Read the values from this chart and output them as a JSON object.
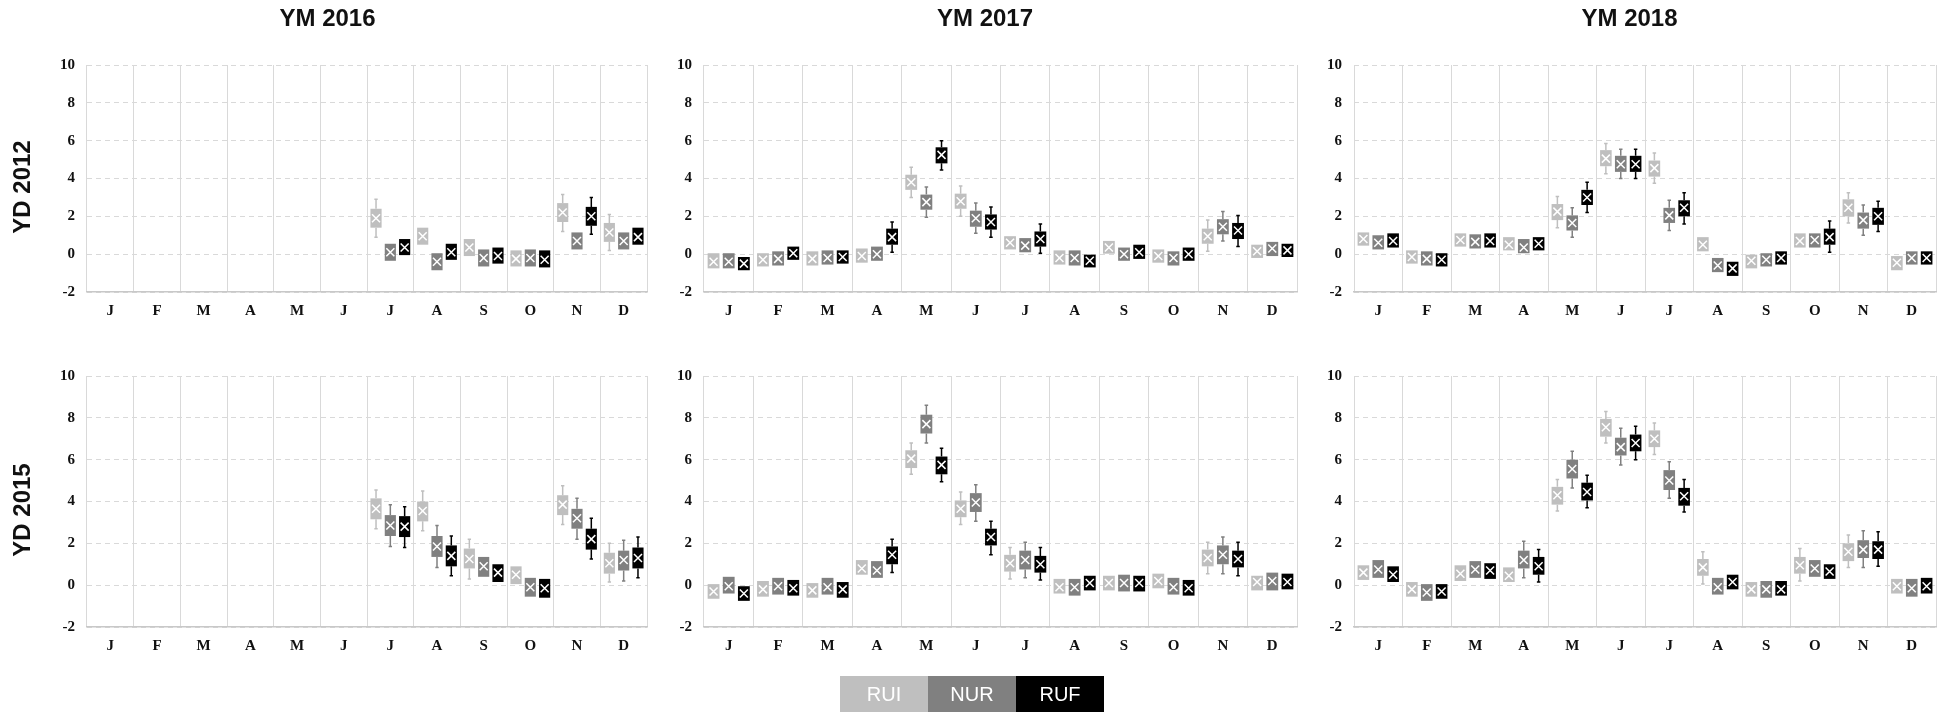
{
  "chart_data": [
    {
      "type": "box",
      "title": "YM 2016",
      "ylabel": "YD 2012",
      "categories": [
        "J",
        "F",
        "M",
        "A",
        "M",
        "J",
        "J",
        "A",
        "S",
        "O",
        "N",
        "D"
      ],
      "ylim": [
        -2,
        10
      ],
      "yticks": [
        -2,
        0,
        2,
        4,
        6,
        8,
        10
      ],
      "grid": true,
      "series": [
        {
          "color": "#bfbfbf",
          "boxes": [
            null,
            null,
            null,
            null,
            null,
            null,
            {
              "low": 0.9,
              "q1": 1.4,
              "median": 1.9,
              "q3": 2.4,
              "high": 2.9
            },
            {
              "low": 0.5,
              "q1": 0.5,
              "median": 0.95,
              "q3": 1.4,
              "high": 1.4
            },
            {
              "low": -0.1,
              "q1": -0.1,
              "median": 0.35,
              "q3": 0.8,
              "high": 0.8
            },
            {
              "low": -0.65,
              "q1": -0.65,
              "median": -0.25,
              "q3": 0.2,
              "high": 0.2
            },
            {
              "low": 1.2,
              "q1": 1.7,
              "median": 2.2,
              "q3": 2.7,
              "high": 3.15
            },
            {
              "low": 0.2,
              "q1": 0.65,
              "median": 1.15,
              "q3": 1.65,
              "high": 2.1
            }
          ]
        },
        {
          "color": "#808080",
          "boxes": [
            null,
            null,
            null,
            null,
            null,
            null,
            {
              "low": -0.35,
              "q1": -0.35,
              "median": 0.1,
              "q3": 0.55,
              "high": 0.55
            },
            {
              "low": -0.85,
              "q1": -0.85,
              "median": -0.4,
              "q3": 0.05,
              "high": 0.05
            },
            {
              "low": -0.65,
              "q1": -0.65,
              "median": -0.2,
              "q3": 0.25,
              "high": 0.25
            },
            {
              "low": -0.65,
              "q1": -0.65,
              "median": -0.2,
              "q3": 0.25,
              "high": 0.25
            },
            {
              "low": 0.25,
              "q1": 0.25,
              "median": 0.7,
              "q3": 1.15,
              "high": 1.15
            },
            {
              "low": 0.25,
              "q1": 0.25,
              "median": 0.7,
              "q3": 1.15,
              "high": 1.15
            }
          ]
        },
        {
          "color": "#000000",
          "boxes": [
            null,
            null,
            null,
            null,
            null,
            null,
            {
              "low": -0.05,
              "q1": -0.05,
              "median": 0.35,
              "q3": 0.8,
              "high": 0.8
            },
            {
              "low": -0.3,
              "q1": -0.3,
              "median": 0.1,
              "q3": 0.55,
              "high": 0.55
            },
            {
              "low": -0.5,
              "q1": -0.5,
              "median": -0.1,
              "q3": 0.35,
              "high": 0.35
            },
            {
              "low": -0.7,
              "q1": -0.7,
              "median": -0.3,
              "q3": 0.2,
              "high": 0.2
            },
            {
              "low": 1.05,
              "q1": 1.5,
              "median": 2.0,
              "q3": 2.5,
              "high": 3.0
            },
            {
              "low": 0.5,
              "q1": 0.5,
              "median": 0.9,
              "q3": 1.4,
              "high": 1.4
            }
          ]
        }
      ]
    },
    {
      "type": "box",
      "title": "YM 2017",
      "categories": [
        "J",
        "F",
        "M",
        "A",
        "M",
        "J",
        "J",
        "A",
        "S",
        "O",
        "N",
        "D"
      ],
      "ylim": [
        -2,
        10
      ],
      "yticks": [
        -2,
        0,
        2,
        4,
        6,
        8,
        10
      ],
      "grid": true,
      "series": [
        {
          "color": "#bfbfbf",
          "boxes": [
            {
              "low": -0.75,
              "q1": -0.75,
              "median": -0.4,
              "q3": 0.05,
              "high": 0.05
            },
            {
              "low": -0.65,
              "q1": -0.65,
              "median": -0.3,
              "q3": 0.05,
              "high": 0.05
            },
            {
              "low": -0.6,
              "q1": -0.6,
              "median": -0.25,
              "q3": 0.15,
              "high": 0.15
            },
            {
              "low": -0.45,
              "q1": -0.45,
              "median": -0.1,
              "q3": 0.3,
              "high": 0.3
            },
            {
              "low": 3.0,
              "q1": 3.4,
              "median": 3.8,
              "q3": 4.2,
              "high": 4.6
            },
            {
              "low": 2.0,
              "q1": 2.4,
              "median": 2.8,
              "q3": 3.2,
              "high": 3.6
            },
            {
              "low": 0.25,
              "q1": 0.25,
              "median": 0.6,
              "q3": 0.95,
              "high": 0.95
            },
            {
              "low": -0.55,
              "q1": -0.55,
              "median": -0.2,
              "q3": 0.2,
              "high": 0.2
            },
            {
              "low": 0,
              "q1": 0,
              "median": 0.35,
              "q3": 0.7,
              "high": 0.7
            },
            {
              "low": -0.45,
              "q1": -0.45,
              "median": -0.1,
              "q3": 0.25,
              "high": 0.25
            },
            {
              "low": 0.15,
              "q1": 0.55,
              "median": 0.95,
              "q3": 1.35,
              "high": 1.8
            },
            {
              "low": -0.2,
              "q1": -0.2,
              "median": 0.15,
              "q3": 0.5,
              "high": 0.5
            }
          ]
        },
        {
          "color": "#808080",
          "boxes": [
            {
              "low": -0.75,
              "q1": -0.75,
              "median": -0.4,
              "q3": 0.05,
              "high": 0.05
            },
            {
              "low": -0.6,
              "q1": -0.6,
              "median": -0.25,
              "q3": 0.15,
              "high": 0.15
            },
            {
              "low": -0.55,
              "q1": -0.55,
              "median": -0.2,
              "q3": 0.2,
              "high": 0.2
            },
            {
              "low": -0.35,
              "q1": -0.35,
              "median": 0,
              "q3": 0.4,
              "high": 0.4
            },
            {
              "low": 1.95,
              "q1": 2.35,
              "median": 2.75,
              "q3": 3.15,
              "high": 3.55
            },
            {
              "low": 1.1,
              "q1": 1.45,
              "median": 1.9,
              "q3": 2.3,
              "high": 2.7
            },
            {
              "low": 0.1,
              "q1": 0.1,
              "median": 0.45,
              "q3": 0.85,
              "high": 0.85
            },
            {
              "low": -0.6,
              "q1": -0.6,
              "median": -0.2,
              "q3": 0.2,
              "high": 0.2
            },
            {
              "low": -0.35,
              "q1": -0.35,
              "median": 0,
              "q3": 0.35,
              "high": 0.35
            },
            {
              "low": -0.6,
              "q1": -0.6,
              "median": -0.2,
              "q3": 0.15,
              "high": 0.15
            },
            {
              "low": 0.7,
              "q1": 1.05,
              "median": 1.45,
              "q3": 1.85,
              "high": 2.25
            },
            {
              "low": -0.1,
              "q1": -0.1,
              "median": 0.3,
              "q3": 0.65,
              "high": 0.65
            }
          ]
        },
        {
          "color": "#000000",
          "boxes": [
            {
              "low": -0.85,
              "q1": -0.85,
              "median": -0.5,
              "q3": -0.15,
              "high": -0.15
            },
            {
              "low": -0.3,
              "q1": -0.3,
              "median": 0.05,
              "q3": 0.4,
              "high": 0.4
            },
            {
              "low": -0.5,
              "q1": -0.5,
              "median": -0.15,
              "q3": 0.2,
              "high": 0.2
            },
            {
              "low": 0.1,
              "q1": 0.5,
              "median": 0.9,
              "q3": 1.35,
              "high": 1.7
            },
            {
              "low": 4.45,
              "q1": 4.8,
              "median": 5.25,
              "q3": 5.65,
              "high": 6.0
            },
            {
              "low": 0.9,
              "q1": 1.3,
              "median": 1.7,
              "q3": 2.1,
              "high": 2.5
            },
            {
              "low": 0.05,
              "q1": 0.4,
              "median": 0.8,
              "q3": 1.2,
              "high": 1.6
            },
            {
              "low": -0.7,
              "q1": -0.7,
              "median": -0.35,
              "q3": 0,
              "high": 0
            },
            {
              "low": -0.25,
              "q1": -0.25,
              "median": 0.1,
              "q3": 0.5,
              "high": 0.5
            },
            {
              "low": -0.35,
              "q1": -0.35,
              "median": 0,
              "q3": 0.35,
              "high": 0.35
            },
            {
              "low": 0.4,
              "q1": 0.8,
              "median": 1.25,
              "q3": 1.65,
              "high": 2.05
            },
            {
              "low": -0.15,
              "q1": -0.15,
              "median": 0.2,
              "q3": 0.55,
              "high": 0.55
            }
          ]
        }
      ]
    },
    {
      "type": "box",
      "title": "YM 2018",
      "categories": [
        "J",
        "F",
        "M",
        "A",
        "M",
        "J",
        "J",
        "A",
        "S",
        "O",
        "N",
        "D"
      ],
      "ylim": [
        -2,
        10
      ],
      "yticks": [
        -2,
        0,
        2,
        4,
        6,
        8,
        10
      ],
      "grid": true,
      "series": [
        {
          "color": "#bfbfbf",
          "boxes": [
            {
              "low": 0.45,
              "q1": 0.45,
              "median": 0.8,
              "q3": 1.15,
              "high": 1.15
            },
            {
              "low": -0.5,
              "q1": -0.5,
              "median": -0.15,
              "q3": 0.2,
              "high": 0.2
            },
            {
              "low": 0.4,
              "q1": 0.4,
              "median": 0.75,
              "q3": 1.1,
              "high": 1.1
            },
            {
              "low": 0.2,
              "q1": 0.2,
              "median": 0.5,
              "q3": 0.9,
              "high": 0.9
            },
            {
              "low": 1.4,
              "q1": 1.8,
              "median": 2.25,
              "q3": 2.65,
              "high": 3.05
            },
            {
              "low": 4.25,
              "q1": 4.65,
              "median": 5.05,
              "q3": 5.5,
              "high": 5.85
            },
            {
              "low": 3.75,
              "q1": 4.1,
              "median": 4.55,
              "q3": 4.95,
              "high": 5.35
            },
            {
              "low": 0.15,
              "q1": 0.15,
              "median": 0.5,
              "q3": 0.9,
              "high": 0.9
            },
            {
              "low": -0.75,
              "q1": -0.75,
              "median": -0.35,
              "q3": 0,
              "high": 0
            },
            {
              "low": 0.35,
              "q1": 0.35,
              "median": 0.7,
              "q3": 1.1,
              "high": 1.1
            },
            {
              "low": 1.65,
              "q1": 2.0,
              "median": 2.45,
              "q3": 2.9,
              "high": 3.25
            },
            {
              "low": -0.85,
              "q1": -0.85,
              "median": -0.45,
              "q3": -0.1,
              "high": -0.1
            }
          ]
        },
        {
          "color": "#808080",
          "boxes": [
            {
              "low": 0.25,
              "q1": 0.25,
              "median": 0.6,
              "q3": 1.0,
              "high": 1.0
            },
            {
              "low": -0.6,
              "q1": -0.6,
              "median": -0.25,
              "q3": 0.15,
              "high": 0.15
            },
            {
              "low": 0.3,
              "q1": 0.3,
              "median": 0.65,
              "q3": 1.05,
              "high": 1.05
            },
            {
              "low": 0.05,
              "q1": 0.05,
              "median": 0.35,
              "q3": 0.8,
              "high": 0.8
            },
            {
              "low": 0.9,
              "q1": 1.25,
              "median": 1.65,
              "q3": 2.05,
              "high": 2.45
            },
            {
              "low": 4.0,
              "q1": 4.35,
              "median": 4.75,
              "q3": 5.2,
              "high": 5.55
            },
            {
              "low": 1.25,
              "q1": 1.65,
              "median": 2.05,
              "q3": 2.45,
              "high": 2.85
            },
            {
              "low": -0.95,
              "q1": -0.95,
              "median": -0.6,
              "q3": -0.2,
              "high": -0.2
            },
            {
              "low": -0.65,
              "q1": -0.65,
              "median": -0.3,
              "q3": 0.05,
              "high": 0.05
            },
            {
              "low": 0.35,
              "q1": 0.35,
              "median": 0.75,
              "q3": 1.1,
              "high": 1.1
            },
            {
              "low": 1.0,
              "q1": 1.35,
              "median": 1.8,
              "q3": 2.2,
              "high": 2.6
            },
            {
              "low": -0.55,
              "q1": -0.55,
              "median": -0.2,
              "q3": 0.15,
              "high": 0.15
            }
          ]
        },
        {
          "color": "#000000",
          "boxes": [
            {
              "low": 0.35,
              "q1": 0.35,
              "median": 0.7,
              "q3": 1.1,
              "high": 1.1
            },
            {
              "low": -0.65,
              "q1": -0.65,
              "median": -0.3,
              "q3": 0.05,
              "high": 0.05
            },
            {
              "low": 0.35,
              "q1": 0.35,
              "median": 0.7,
              "q3": 1.1,
              "high": 1.1
            },
            {
              "low": 0.2,
              "q1": 0.2,
              "median": 0.55,
              "q3": 0.9,
              "high": 0.9
            },
            {
              "low": 2.2,
              "q1": 2.6,
              "median": 3.0,
              "q3": 3.4,
              "high": 3.8
            },
            {
              "low": 4.0,
              "q1": 4.35,
              "median": 4.75,
              "q3": 5.2,
              "high": 5.55
            },
            {
              "low": 1.6,
              "q1": 2.0,
              "median": 2.45,
              "q3": 2.85,
              "high": 3.25
            },
            {
              "low": -1.15,
              "q1": -1.15,
              "median": -0.75,
              "q3": -0.4,
              "high": -0.4
            },
            {
              "low": -0.55,
              "q1": -0.55,
              "median": -0.2,
              "q3": 0.15,
              "high": 0.15
            },
            {
              "low": 0.1,
              "q1": 0.5,
              "median": 0.9,
              "q3": 1.35,
              "high": 1.75
            },
            {
              "low": 1.2,
              "q1": 1.55,
              "median": 2.0,
              "q3": 2.45,
              "high": 2.8
            },
            {
              "low": -0.55,
              "q1": -0.55,
              "median": -0.2,
              "q3": 0.15,
              "high": 0.15
            }
          ]
        }
      ]
    },
    {
      "type": "box",
      "ylabel": "YD 2015",
      "categories": [
        "J",
        "F",
        "M",
        "A",
        "M",
        "J",
        "J",
        "A",
        "S",
        "O",
        "N",
        "D"
      ],
      "ylim": [
        -2,
        10
      ],
      "yticks": [
        -2,
        0,
        2,
        4,
        6,
        8,
        10
      ],
      "grid": true,
      "series": [
        {
          "color": "#bfbfbf",
          "boxes": [
            null,
            null,
            null,
            null,
            null,
            null,
            {
              "low": 2.7,
              "q1": 3.15,
              "median": 3.65,
              "q3": 4.15,
              "high": 4.55
            },
            {
              "low": 2.6,
              "q1": 3.05,
              "median": 3.55,
              "q3": 4.0,
              "high": 4.5
            },
            {
              "low": 0.3,
              "q1": 0.8,
              "median": 1.25,
              "q3": 1.75,
              "high": 2.2
            },
            {
              "low": 0.05,
              "q1": 0.05,
              "median": 0.5,
              "q3": 0.9,
              "high": 0.9
            },
            {
              "low": 2.9,
              "q1": 3.35,
              "median": 3.85,
              "q3": 4.3,
              "high": 4.75
            },
            {
              "low": 0.15,
              "q1": 0.55,
              "median": 1.05,
              "q3": 1.55,
              "high": 2.0
            }
          ]
        },
        {
          "color": "#808080",
          "boxes": [
            null,
            null,
            null,
            null,
            null,
            null,
            {
              "low": 1.85,
              "q1": 2.35,
              "median": 2.85,
              "q3": 3.35,
              "high": 3.85
            },
            {
              "low": 0.85,
              "q1": 1.35,
              "median": 1.85,
              "q3": 2.35,
              "high": 2.85
            },
            {
              "low": 0.4,
              "q1": 0.4,
              "median": 0.9,
              "q3": 1.35,
              "high": 1.35
            },
            {
              "low": -0.55,
              "q1": -0.55,
              "median": -0.1,
              "q3": 0.35,
              "high": 0.35
            },
            {
              "low": 2.2,
              "q1": 2.7,
              "median": 3.2,
              "q3": 3.65,
              "high": 4.15
            },
            {
              "low": 0.2,
              "q1": 0.7,
              "median": 1.2,
              "q3": 1.65,
              "high": 2.15
            }
          ]
        },
        {
          "color": "#000000",
          "boxes": [
            null,
            null,
            null,
            null,
            null,
            null,
            {
              "low": 1.8,
              "q1": 2.3,
              "median": 2.8,
              "q3": 3.3,
              "high": 3.75
            },
            {
              "low": 0.45,
              "q1": 0.9,
              "median": 1.4,
              "q3": 1.9,
              "high": 2.35
            },
            {
              "low": 0.15,
              "q1": 0.15,
              "median": 0.6,
              "q3": 1.0,
              "high": 1.0
            },
            {
              "low": -0.6,
              "q1": -0.6,
              "median": -0.15,
              "q3": 0.3,
              "high": 0.3
            },
            {
              "low": 1.25,
              "q1": 1.7,
              "median": 2.2,
              "q3": 2.7,
              "high": 3.2
            },
            {
              "low": 0.35,
              "q1": 0.8,
              "median": 1.3,
              "q3": 1.8,
              "high": 2.3
            }
          ]
        }
      ]
    },
    {
      "type": "box",
      "legend": "bottom",
      "categories": [
        "J",
        "F",
        "M",
        "A",
        "M",
        "J",
        "J",
        "A",
        "S",
        "O",
        "N",
        "D"
      ],
      "ylim": [
        -2,
        10
      ],
      "yticks": [
        -2,
        0,
        2,
        4,
        6,
        8,
        10
      ],
      "grid": true,
      "series": [
        {
          "name": "RUI",
          "color": "#bfbfbf",
          "boxes": [
            {
              "low": -0.65,
              "q1": -0.65,
              "median": -0.3,
              "q3": 0.05,
              "high": 0.05
            },
            {
              "low": -0.55,
              "q1": -0.55,
              "median": -0.2,
              "q3": 0.2,
              "high": 0.2
            },
            {
              "low": -0.6,
              "q1": -0.6,
              "median": -0.25,
              "q3": 0.1,
              "high": 0.1
            },
            {
              "low": 0.5,
              "q1": 0.5,
              "median": 0.8,
              "q3": 1.2,
              "high": 1.2
            },
            {
              "low": 5.3,
              "q1": 5.6,
              "median": 6.05,
              "q3": 6.45,
              "high": 6.8
            },
            {
              "low": 2.9,
              "q1": 3.25,
              "median": 3.65,
              "q3": 4.05,
              "high": 4.45
            },
            {
              "low": 0.3,
              "q1": 0.65,
              "median": 1.05,
              "q3": 1.45,
              "high": 1.8
            },
            {
              "low": -0.4,
              "q1": -0.4,
              "median": -0.1,
              "q3": 0.3,
              "high": 0.3
            },
            {
              "low": -0.25,
              "q1": -0.25,
              "median": 0.1,
              "q3": 0.45,
              "high": 0.45
            },
            {
              "low": -0.15,
              "q1": -0.15,
              "median": 0.2,
              "q3": 0.55,
              "high": 0.55
            },
            {
              "low": 0.55,
              "q1": 0.9,
              "median": 1.3,
              "q3": 1.7,
              "high": 2.05
            },
            {
              "low": -0.25,
              "q1": -0.25,
              "median": 0.15,
              "q3": 0.45,
              "high": 0.45
            }
          ]
        },
        {
          "name": "NUR",
          "color": "#808080",
          "boxes": [
            {
              "low": -0.4,
              "q1": -0.4,
              "median": -0.05,
              "q3": 0.4,
              "high": 0.4
            },
            {
              "low": -0.45,
              "q1": -0.45,
              "median": -0.05,
              "q3": 0.35,
              "high": 0.35
            },
            {
              "low": -0.45,
              "q1": -0.45,
              "median": -0.1,
              "q3": 0.35,
              "high": 0.35
            },
            {
              "low": 0.35,
              "q1": 0.35,
              "median": 0.7,
              "q3": 1.15,
              "high": 1.15
            },
            {
              "low": 6.8,
              "q1": 7.25,
              "median": 7.7,
              "q3": 8.15,
              "high": 8.6
            },
            {
              "low": 3.05,
              "q1": 3.5,
              "median": 3.95,
              "q3": 4.4,
              "high": 4.8
            },
            {
              "low": 0.35,
              "q1": 0.75,
              "median": 1.2,
              "q3": 1.65,
              "high": 2.05
            },
            {
              "low": -0.5,
              "q1": -0.5,
              "median": -0.1,
              "q3": 0.3,
              "high": 0.3
            },
            {
              "low": -0.3,
              "q1": -0.3,
              "median": 0.1,
              "q3": 0.5,
              "high": 0.5
            },
            {
              "low": -0.45,
              "q1": -0.45,
              "median": -0.1,
              "q3": 0.35,
              "high": 0.35
            },
            {
              "low": 0.55,
              "q1": 1.0,
              "median": 1.45,
              "q3": 1.9,
              "high": 2.3
            },
            {
              "low": -0.25,
              "q1": -0.25,
              "median": 0.2,
              "q3": 0.6,
              "high": 0.6
            }
          ]
        },
        {
          "name": "RUF",
          "color": "#000000",
          "boxes": [
            {
              "low": -0.75,
              "q1": -0.75,
              "median": -0.4,
              "q3": -0.05,
              "high": -0.05
            },
            {
              "low": -0.5,
              "q1": -0.5,
              "median": -0.15,
              "q3": 0.25,
              "high": 0.25
            },
            {
              "low": -0.6,
              "q1": -0.6,
              "median": -0.2,
              "q3": 0.15,
              "high": 0.15
            },
            {
              "low": 0.6,
              "q1": 1.0,
              "median": 1.45,
              "q3": 1.85,
              "high": 2.2
            },
            {
              "low": 4.95,
              "q1": 5.3,
              "median": 5.75,
              "q3": 6.15,
              "high": 6.55
            },
            {
              "low": 1.45,
              "q1": 1.9,
              "median": 2.3,
              "q3": 2.7,
              "high": 3.05
            },
            {
              "low": 0.25,
              "q1": 0.6,
              "median": 1.0,
              "q3": 1.4,
              "high": 1.8
            },
            {
              "low": -0.25,
              "q1": -0.25,
              "median": 0.1,
              "q3": 0.45,
              "high": 0.45
            },
            {
              "low": -0.3,
              "q1": -0.3,
              "median": 0.1,
              "q3": 0.45,
              "high": 0.45
            },
            {
              "low": -0.5,
              "q1": -0.5,
              "median": -0.15,
              "q3": 0.25,
              "high": 0.25
            },
            {
              "low": 0.45,
              "q1": 0.85,
              "median": 1.25,
              "q3": 1.65,
              "high": 2.05
            },
            {
              "low": -0.2,
              "q1": -0.2,
              "median": 0.15,
              "q3": 0.55,
              "high": 0.55
            }
          ]
        }
      ]
    },
    {
      "type": "box",
      "categories": [
        "J",
        "F",
        "M",
        "A",
        "M",
        "J",
        "J",
        "A",
        "S",
        "O",
        "N",
        "D"
      ],
      "ylim": [
        -2,
        10
      ],
      "yticks": [
        -2,
        0,
        2,
        4,
        6,
        8,
        10
      ],
      "grid": true,
      "series": [
        {
          "color": "#bfbfbf",
          "boxes": [
            {
              "low": 0.25,
              "q1": 0.25,
              "median": 0.6,
              "q3": 0.95,
              "high": 0.95
            },
            {
              "low": -0.55,
              "q1": -0.55,
              "median": -0.2,
              "q3": 0.15,
              "high": 0.15
            },
            {
              "low": 0.2,
              "q1": 0.2,
              "median": 0.55,
              "q3": 0.95,
              "high": 0.95
            },
            {
              "low": 0.15,
              "q1": 0.15,
              "median": 0.45,
              "q3": 0.85,
              "high": 0.85
            },
            {
              "low": 3.55,
              "q1": 3.85,
              "median": 4.3,
              "q3": 4.7,
              "high": 5.05
            },
            {
              "low": 6.8,
              "q1": 7.1,
              "median": 7.55,
              "q3": 7.95,
              "high": 8.3
            },
            {
              "low": 6.25,
              "q1": 6.6,
              "median": 7.0,
              "q3": 7.4,
              "high": 7.75
            },
            {
              "low": 0.05,
              "q1": 0.45,
              "median": 0.85,
              "q3": 1.25,
              "high": 1.6
            },
            {
              "low": -0.55,
              "q1": -0.55,
              "median": -0.2,
              "q3": 0.15,
              "high": 0.15
            },
            {
              "low": 0.2,
              "q1": 0.55,
              "median": 0.95,
              "q3": 1.35,
              "high": 1.75
            },
            {
              "low": 0.85,
              "q1": 1.15,
              "median": 1.6,
              "q3": 2.0,
              "high": 2.4
            },
            {
              "low": -0.4,
              "q1": -0.4,
              "median": -0.05,
              "q3": 0.3,
              "high": 0.3
            }
          ]
        },
        {
          "color": "#808080",
          "boxes": [
            {
              "low": 0.35,
              "q1": 0.35,
              "median": 0.75,
              "q3": 1.2,
              "high": 1.2
            },
            {
              "low": -0.75,
              "q1": -0.75,
              "median": -0.35,
              "q3": 0.05,
              "high": 0.05
            },
            {
              "low": 0.35,
              "q1": 0.35,
              "median": 0.75,
              "q3": 1.15,
              "high": 1.15
            },
            {
              "low": 0.35,
              "q1": 0.8,
              "median": 1.2,
              "q3": 1.65,
              "high": 2.1
            },
            {
              "low": 4.65,
              "q1": 5.1,
              "median": 5.55,
              "q3": 6.0,
              "high": 6.4
            },
            {
              "low": 5.75,
              "q1": 6.2,
              "median": 6.6,
              "q3": 7.05,
              "high": 7.5
            },
            {
              "low": 4.15,
              "q1": 4.55,
              "median": 5.0,
              "q3": 5.5,
              "high": 5.9
            },
            {
              "low": -0.45,
              "q1": -0.45,
              "median": -0.1,
              "q3": 0.35,
              "high": 0.35
            },
            {
              "low": -0.6,
              "q1": -0.6,
              "median": -0.2,
              "q3": 0.2,
              "high": 0.2
            },
            {
              "low": 0.4,
              "q1": 0.4,
              "median": 0.8,
              "q3": 1.2,
              "high": 1.2
            },
            {
              "low": 0.85,
              "q1": 1.3,
              "median": 1.7,
              "q3": 2.15,
              "high": 2.6
            },
            {
              "low": -0.55,
              "q1": -0.55,
              "median": -0.15,
              "q3": 0.3,
              "high": 0.3
            }
          ]
        },
        {
          "color": "#000000",
          "boxes": [
            {
              "low": 0.15,
              "q1": 0.15,
              "median": 0.5,
              "q3": 0.9,
              "high": 0.9
            },
            {
              "low": -0.65,
              "q1": -0.65,
              "median": -0.3,
              "q3": 0.05,
              "high": 0.05
            },
            {
              "low": 0.3,
              "q1": 0.3,
              "median": 0.7,
              "q3": 1.05,
              "high": 1.05
            },
            {
              "low": 0.15,
              "q1": 0.5,
              "median": 0.9,
              "q3": 1.35,
              "high": 1.7
            },
            {
              "low": 3.7,
              "q1": 4.05,
              "median": 4.45,
              "q3": 4.9,
              "high": 5.25
            },
            {
              "low": 6.0,
              "q1": 6.4,
              "median": 6.8,
              "q3": 7.2,
              "high": 7.6
            },
            {
              "low": 3.5,
              "q1": 3.8,
              "median": 4.25,
              "q3": 4.65,
              "high": 5.05
            },
            {
              "low": -0.2,
              "q1": -0.2,
              "median": 0.15,
              "q3": 0.5,
              "high": 0.5
            },
            {
              "low": -0.5,
              "q1": -0.5,
              "median": -0.2,
              "q3": 0.2,
              "high": 0.2
            },
            {
              "low": 0.3,
              "q1": 0.3,
              "median": 0.65,
              "q3": 1.0,
              "high": 1.0
            },
            {
              "low": 0.9,
              "q1": 1.25,
              "median": 1.7,
              "q3": 2.1,
              "high": 2.55
            },
            {
              "low": -0.4,
              "q1": -0.4,
              "median": -0.05,
              "q3": 0.35,
              "high": 0.35
            }
          ]
        }
      ]
    }
  ]
}
